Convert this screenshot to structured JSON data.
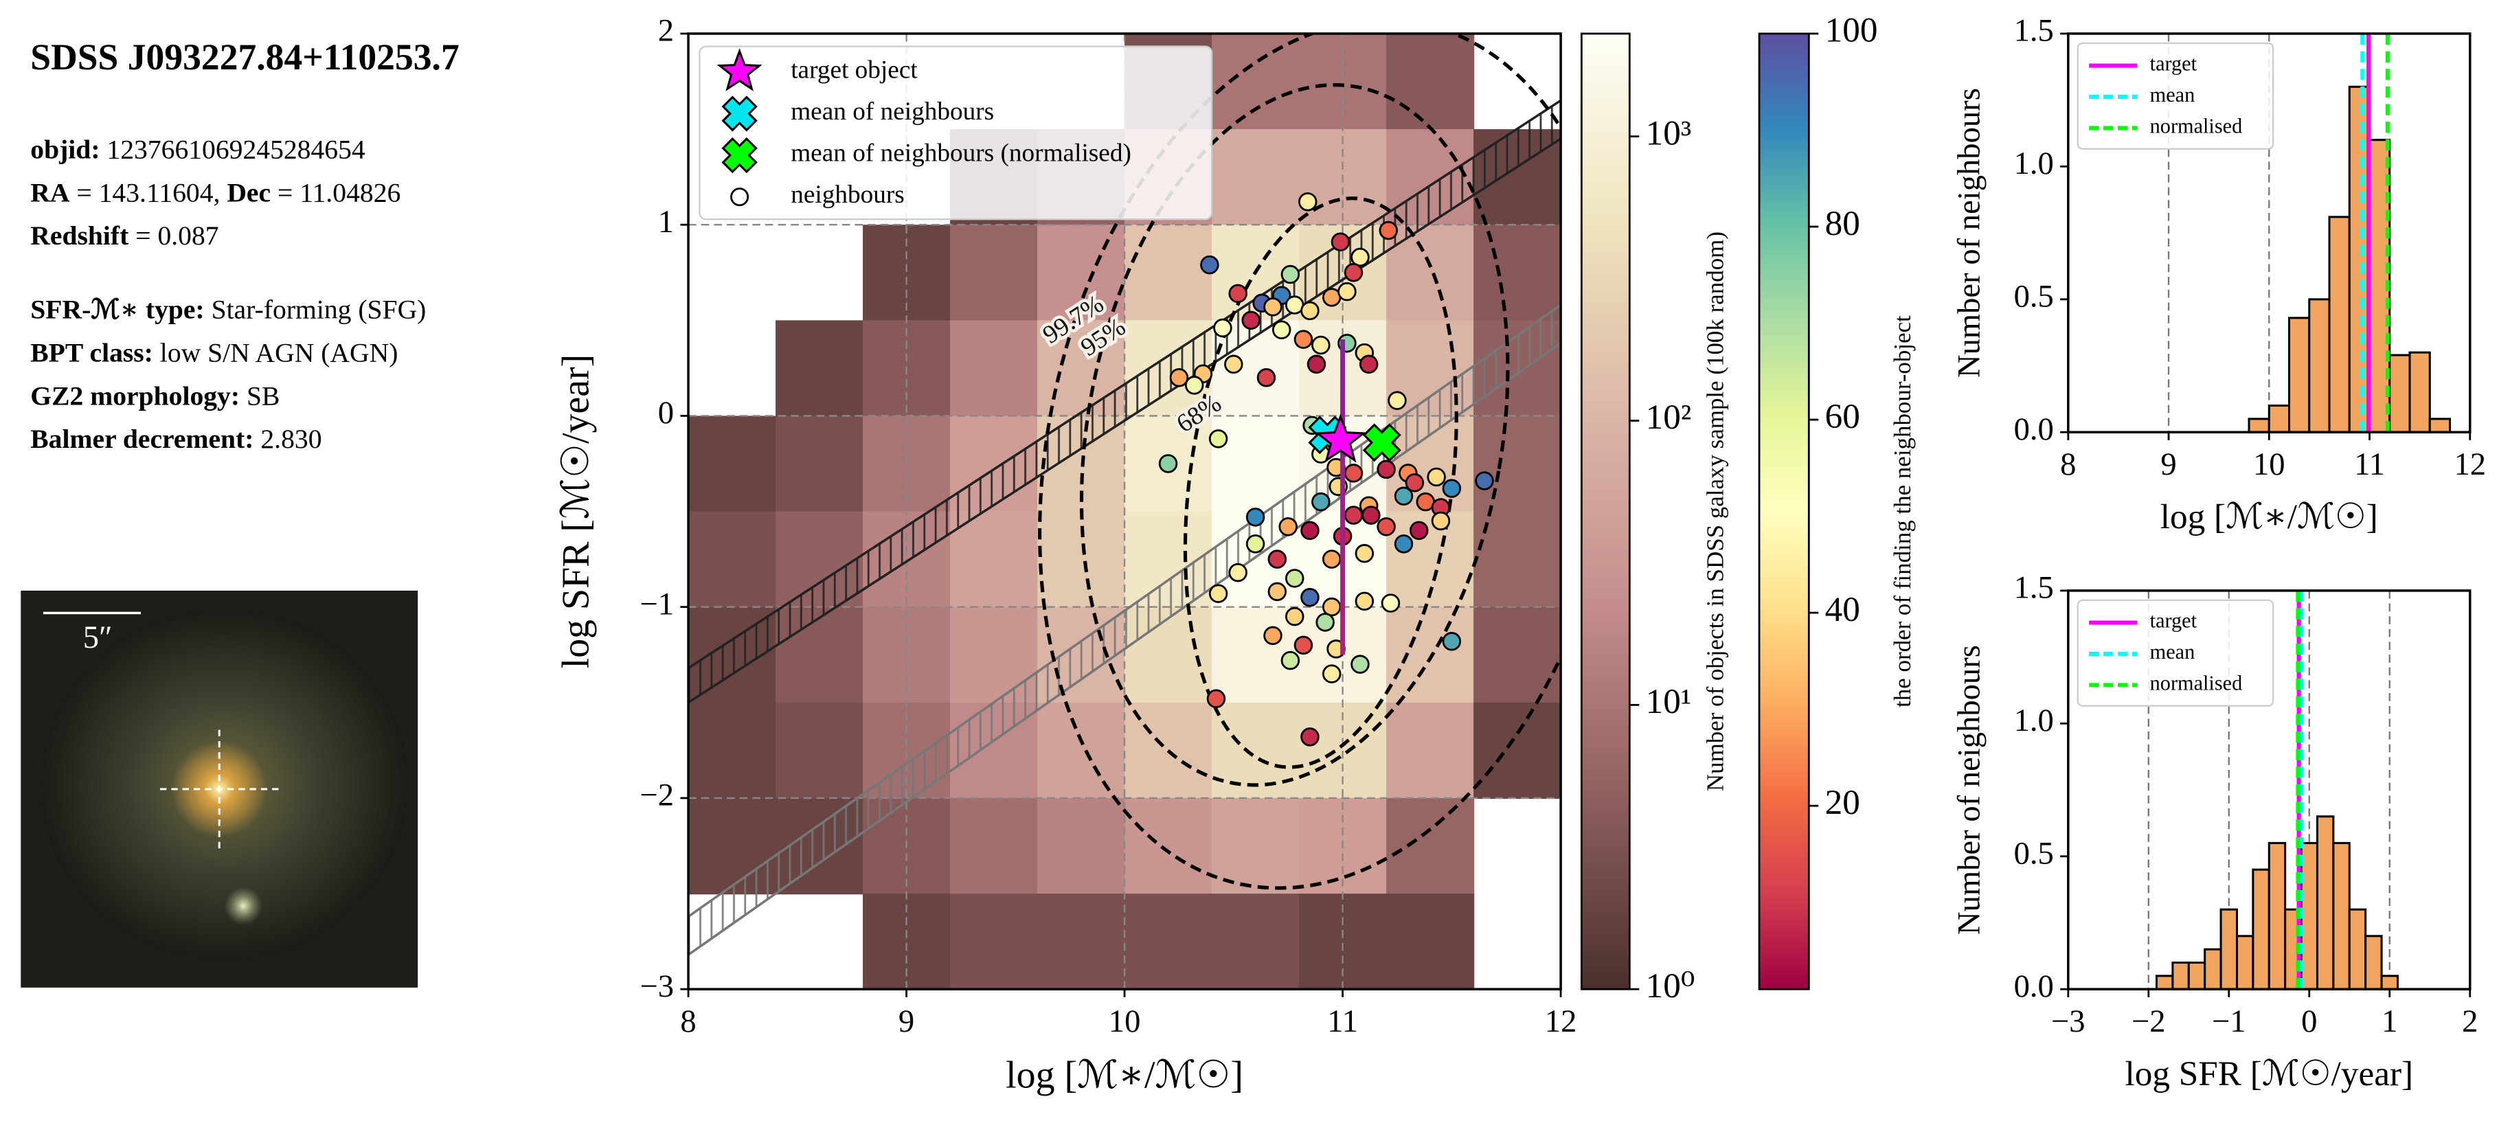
{
  "info": {
    "title": "SDSS J093227.84+110253.7",
    "rows": [
      [
        {
          "text": "objid:",
          "bold": true
        },
        {
          "text": " 1237661069245284654",
          "bold": false
        }
      ],
      [
        {
          "text": "RA",
          "bold": true
        },
        {
          "text": " = 143.11604, ",
          "bold": false
        },
        {
          "text": "Dec",
          "bold": true
        },
        {
          "text": " = 11.04826",
          "bold": false
        }
      ],
      [
        {
          "text": "Redshift",
          "bold": true
        },
        {
          "text": " = 0.087",
          "bold": false
        }
      ],
      [
        {
          "text": "SFR-ℳ∗ type:",
          "bold": true
        },
        {
          "text": " Star-forming (SFG)",
          "bold": false
        }
      ],
      [
        {
          "text": "BPT class:",
          "bold": true
        },
        {
          "text": " low S/N AGN (AGN)",
          "bold": false
        }
      ],
      [
        {
          "text": "GZ2 morphology:",
          "bold": true
        },
        {
          "text": " SB",
          "bold": false
        }
      ],
      [
        {
          "text": "Balmer decrement:",
          "bold": true
        },
        {
          "text": " 2.830",
          "bold": false
        }
      ]
    ]
  },
  "image": {
    "scale_label": "5″"
  },
  "chart_data": [
    {
      "type": "scatter",
      "xlabel": "log [ℳ∗/ℳ☉]",
      "ylabel": "log SFR [ℳ☉/year]",
      "xlim": [
        8,
        12
      ],
      "ylim": [
        -3,
        2
      ],
      "xticks": [
        8,
        9,
        10,
        11,
        12
      ],
      "yticks": [
        {
          "value": -3,
          "label": "−3"
        },
        {
          "value": -2,
          "label": "−2"
        },
        {
          "value": -1,
          "label": "−1"
        },
        0,
        1,
        2
      ],
      "grid": true,
      "legend": "upper left",
      "heatmap": {
        "xbins": [
          8,
          8.4,
          8.8,
          9.2,
          9.6,
          10,
          10.4,
          10.8,
          11.2,
          11.6,
          12
        ],
        "ybins": [
          2,
          1.5,
          1,
          0.5,
          0,
          -0.5,
          -1,
          -1.5,
          -2,
          -2.5,
          -3
        ],
        "values": [
          [
            null,
            null,
            null,
            null,
            null,
            3,
            10,
            10,
            4,
            null
          ],
          [
            null,
            null,
            null,
            2,
            5,
            20,
            63,
            63,
            20,
            2
          ],
          [
            null,
            null,
            2,
            6,
            25,
            160,
            630,
            400,
            63,
            4
          ],
          [
            null,
            2,
            4,
            16,
            100,
            630,
            1600,
            1000,
            100,
            5
          ],
          [
            2,
            3,
            10,
            40,
            200,
            800,
            2000,
            1600,
            160,
            6
          ],
          [
            3,
            5,
            16,
            50,
            200,
            630,
            2000,
            2000,
            250,
            6
          ],
          [
            2,
            4,
            13,
            32,
            100,
            400,
            1260,
            1260,
            160,
            4
          ],
          [
            2,
            3,
            8,
            20,
            50,
            160,
            400,
            400,
            50,
            2
          ],
          [
            2,
            2,
            4,
            8,
            16,
            32,
            50,
            40,
            6,
            null
          ],
          [
            null,
            null,
            2,
            3,
            3,
            3,
            3,
            2,
            2,
            null
          ]
        ]
      },
      "colorbars": [
        {
          "label": "Number of objects in SDSS galaxy sample (100k random)",
          "log": true,
          "lim": [
            1,
            2300
          ],
          "ticks": [
            {
              "value": 1,
              "label": "10⁰"
            },
            {
              "value": 10,
              "label": "10¹"
            },
            {
              "value": 100,
              "label": "10²"
            },
            {
              "value": 1000,
              "label": "10³"
            }
          ],
          "colormap": [
            "#4a302e",
            "#8e5f5e",
            "#c48d8c",
            "#dbb6a7",
            "#efe3bd",
            "#fefef6"
          ]
        },
        {
          "label": "the order of finding the neighbour-object",
          "log": false,
          "lim": [
            1,
            100
          ],
          "ticks": [
            20,
            40,
            60,
            80,
            100
          ],
          "colormap": [
            "#9e0142",
            "#d53e4f",
            "#f46d43",
            "#fdae61",
            "#fee08b",
            "#ffffbf",
            "#e6f598",
            "#abdda4",
            "#66c2a5",
            "#3288bd",
            "#5e4fa2"
          ]
        }
      ],
      "bands": [
        {
          "x": [
            8,
            12
          ],
          "y_low": [
            -1.5,
            1.45
          ],
          "y_high": [
            -1.32,
            1.65
          ],
          "color": "#222222"
        },
        {
          "x": [
            8,
            12
          ],
          "y_low": [
            -2.82,
            0.38
          ],
          "y_high": [
            -2.62,
            0.58
          ],
          "color": "#777777"
        }
      ],
      "ellipses": [
        {
          "label": "68%",
          "cx": 10.9,
          "cy": -0.35,
          "rx": 0.6,
          "ry": 1.5,
          "angle": 8
        },
        {
          "label": "95%",
          "cx": 10.78,
          "cy": -0.1,
          "rx": 0.95,
          "ry": 1.85,
          "angle": 10
        },
        {
          "label": "99.7%",
          "cx": 10.95,
          "cy": -0.2,
          "rx": 1.3,
          "ry": 2.3,
          "angle": 12
        }
      ],
      "sfr_range": {
        "x": 11.0,
        "low": -1.25,
        "high": 0.4,
        "color": "#a0208f"
      },
      "series": [
        {
          "name": "target object",
          "marker": "star",
          "color": "#ff00ff",
          "x": [
            10.99
          ],
          "values": [
            -0.13
          ]
        },
        {
          "name": "mean of neighbours",
          "marker": "x",
          "color": "#00e5ee",
          "x": [
            10.93
          ],
          "values": [
            -0.1
          ]
        },
        {
          "name": "mean of neighbours (normalised)",
          "marker": "x",
          "color": "#00ff00",
          "x": [
            11.18
          ],
          "values": [
            -0.14
          ]
        },
        {
          "name": "neighbours",
          "marker": "circle",
          "color": "#ffffff",
          "x": [
            10.84,
            10.39,
            11.21,
            10.99,
            11.08,
            11.05,
            10.76,
            10.63,
            10.72,
            10.52,
            10.68,
            10.78,
            10.85,
            10.95,
            11.02,
            10.45,
            10.58,
            10.72,
            10.82,
            10.9,
            11.02,
            11.1,
            11.12,
            10.5,
            10.65,
            10.88,
            10.36,
            10.25,
            10.32,
            11.25,
            10.2,
            10.43,
            10.86,
            10.9,
            10.97,
            11.05,
            11.2,
            11.3,
            11.33,
            11.28,
            11.43,
            11.5,
            11.65,
            10.98,
            11.38,
            11.45,
            11.12,
            10.9,
            11.05,
            11.13,
            10.85,
            11.0,
            10.6,
            10.75,
            11.2,
            11.35,
            11.45,
            10.6,
            11.28,
            11.1,
            10.95,
            10.7,
            10.52,
            10.78,
            10.43,
            10.7,
            10.85,
            10.95,
            11.1,
            11.22,
            10.78,
            10.92,
            10.68,
            10.82,
            10.97,
            10.76,
            11.08,
            11.5,
            10.95,
            10.42,
            10.85
          ],
          "values": [
            1.12,
            0.79,
            0.97,
            0.91,
            0.83,
            0.75,
            0.74,
            0.59,
            0.63,
            0.64,
            0.57,
            0.58,
            0.55,
            0.62,
            0.65,
            0.46,
            0.5,
            0.45,
            0.4,
            0.37,
            0.38,
            0.33,
            0.27,
            0.27,
            0.2,
            0.27,
            0.22,
            0.2,
            0.16,
            0.08,
            -0.25,
            -0.12,
            -0.05,
            -0.2,
            -0.27,
            -0.3,
            -0.28,
            -0.3,
            -0.35,
            -0.42,
            -0.32,
            -0.38,
            -0.34,
            -0.37,
            -0.45,
            -0.48,
            -0.47,
            -0.45,
            -0.52,
            -0.52,
            -0.6,
            -0.63,
            -0.53,
            -0.58,
            -0.58,
            -0.6,
            -0.55,
            -0.67,
            -0.67,
            -0.72,
            -0.75,
            -0.75,
            -0.82,
            -0.85,
            -0.93,
            -0.92,
            -0.95,
            -1.0,
            -0.97,
            -0.98,
            -1.05,
            -1.08,
            -1.15,
            -1.2,
            -1.22,
            -1.28,
            -1.3,
            -1.18,
            -1.35,
            -1.48,
            -1.68
          ],
          "order": [
            45,
            95,
            20,
            10,
            45,
            12,
            70,
            97,
            92,
            12,
            35,
            48,
            40,
            30,
            42,
            50,
            8,
            55,
            25,
            45,
            75,
            40,
            8,
            40,
            12,
            6,
            35,
            30,
            55,
            45,
            75,
            60,
            70,
            55,
            35,
            15,
            8,
            25,
            12,
            85,
            40,
            90,
            95,
            40,
            20,
            10,
            30,
            85,
            10,
            6,
            5,
            8,
            90,
            30,
            15,
            5,
            38,
            60,
            90,
            40,
            30,
            10,
            45,
            65,
            42,
            35,
            95,
            35,
            40,
            50,
            38,
            70,
            30,
            15,
            40,
            65,
            70,
            85,
            45,
            15,
            8
          ]
        }
      ]
    },
    {
      "type": "histogram",
      "xlabel": "log [ℳ∗/ℳ☉]",
      "ylabel": "Number of neighbours",
      "bins": [
        9.8,
        10.0,
        10.2,
        10.4,
        10.6,
        10.8,
        11.0,
        11.2,
        11.4,
        11.6,
        11.8
      ],
      "counts": [
        0.05,
        0.1,
        0.43,
        0.5,
        0.81,
        1.3,
        1.1,
        0.29,
        0.3,
        0.05
      ],
      "color": "#f2a55f",
      "xlim": [
        8,
        12
      ],
      "ylim": [
        0,
        1.5
      ],
      "xticks": [
        8,
        9,
        10,
        11,
        12
      ],
      "yticks": [
        {
          "value": 0,
          "label": "0.0"
        },
        {
          "value": 0.5,
          "label": "0.5"
        },
        {
          "value": 1,
          "label": "1.0"
        },
        {
          "value": 1.5,
          "label": "1.5"
        }
      ],
      "grid": true,
      "legend": "upper left",
      "vlines": [
        {
          "name": "target",
          "value": 10.99,
          "color": "#ff00ff",
          "style": "solid"
        },
        {
          "name": "mean",
          "value": 10.93,
          "color": "#00ffff",
          "style": "dashed"
        },
        {
          "name": "normalised",
          "value": 11.18,
          "color": "#00ff00",
          "style": "dashed"
        }
      ]
    },
    {
      "type": "histogram",
      "xlabel": "log SFR [ℳ☉/year]",
      "ylabel": "Number of neighbours",
      "bins": [
        -1.9,
        -1.7,
        -1.5,
        -1.3,
        -1.1,
        -0.9,
        -0.7,
        -0.5,
        -0.3,
        -0.1,
        0.1,
        0.3,
        0.5,
        0.7,
        0.9,
        1.1
      ],
      "counts": [
        0.05,
        0.1,
        0.1,
        0.15,
        0.3,
        0.2,
        0.45,
        0.55,
        0.3,
        0.55,
        0.65,
        0.55,
        0.3,
        0.2,
        0.05
      ],
      "color": "#f2a55f",
      "xlim": [
        -3,
        2
      ],
      "ylim": [
        0,
        1.5
      ],
      "xticks": [
        {
          "value": -3,
          "label": "−3"
        },
        {
          "value": -2,
          "label": "−2"
        },
        {
          "value": -1,
          "label": "−1"
        },
        0,
        1,
        2
      ],
      "yticks": [
        {
          "value": 0,
          "label": "0.0"
        },
        {
          "value": 0.5,
          "label": "0.5"
        },
        {
          "value": 1,
          "label": "1.0"
        },
        {
          "value": 1.5,
          "label": "1.5"
        }
      ],
      "grid": true,
      "legend": "upper left",
      "vlines": [
        {
          "name": "target",
          "value": -0.13,
          "color": "#ff00ff",
          "style": "solid"
        },
        {
          "name": "mean",
          "value": -0.1,
          "color": "#00ffff",
          "style": "dashed"
        },
        {
          "name": "normalised",
          "value": -0.14,
          "color": "#00ff00",
          "style": "dashed"
        }
      ]
    }
  ]
}
